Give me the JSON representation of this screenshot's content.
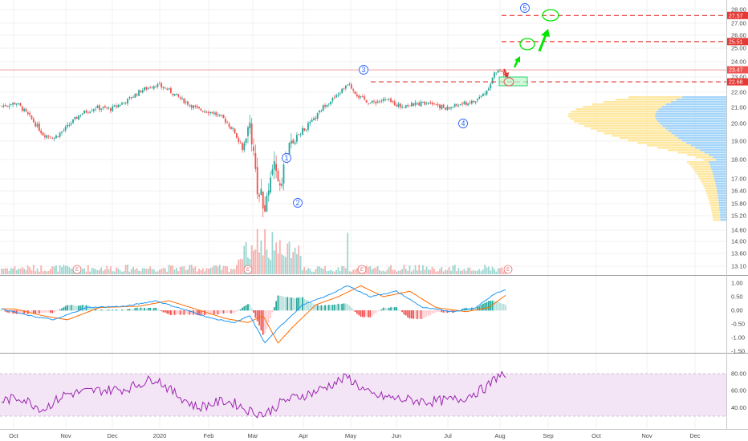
{
  "colors": {
    "up": "#26a69a",
    "down": "#ef5350",
    "macd": "#2196f3",
    "signal": "#ff6d00",
    "rsi": "#9c27b0",
    "rsi_band": "#f3e5f5",
    "level_dash": "#e53935",
    "price_line": "#ef9a9a",
    "vp_up": "#90caf9",
    "vp_down": "#ffe082",
    "annotation_green": "#00e600",
    "wave_label": "#2962ff"
  },
  "price_axis": {
    "ticks": [
      "28.00",
      "27.00",
      "26.00",
      "25.00",
      "24.00",
      "23.00",
      "22.00",
      "21.00",
      "20.00",
      "19.00",
      "18.00",
      "17.00",
      "16.40",
      "15.80",
      "15.20",
      "14.60",
      "14.00",
      "13.60",
      "13.10"
    ]
  },
  "price_tags": [
    {
      "label": "27.57",
      "value": 27.57,
      "color": "#e53935"
    },
    {
      "label": "25.51",
      "value": 25.51,
      "color": "#e53935"
    },
    {
      "label": "23.47",
      "value": 23.47,
      "color": "#ef5350"
    },
    {
      "label": "22.68",
      "value": 22.68,
      "color": "#e53935"
    }
  ],
  "macd_axis": {
    "ticks": [
      "1.00",
      "0.50",
      "0.00",
      "-0.50",
      "-1.00",
      "-1.50"
    ]
  },
  "rsi_axis": {
    "ticks": [
      "80.00",
      "60.00",
      "40.00"
    ]
  },
  "time_axis": {
    "labels": [
      "Oct",
      "Nov",
      "Dec",
      "2020",
      "Feb",
      "Mar",
      "Apr",
      "May",
      "Jun",
      "Jul",
      "Aug",
      "Sep",
      "Oct",
      "Nov",
      "Dec"
    ]
  },
  "wave_labels": [
    "1",
    "2",
    "3",
    "4",
    "5"
  ],
  "earnings_marker": "E",
  "chart_data": {
    "type": "candlestick",
    "symbol_levels": [
      27.57,
      25.51,
      22.68
    ],
    "last_price": 23.47,
    "price_range": [
      12.8,
      28.3
    ],
    "x_months": [
      "Oct",
      "Nov",
      "Dec",
      "2020",
      "Feb",
      "Mar",
      "Apr",
      "May",
      "Jun",
      "Jul",
      "Aug"
    ],
    "close_path": [
      [
        0,
        21.1
      ],
      [
        8,
        21.3
      ],
      [
        15,
        20.4
      ],
      [
        22,
        19.4
      ],
      [
        28,
        19.2
      ],
      [
        34,
        19.7
      ],
      [
        42,
        20.6
      ],
      [
        50,
        21.0
      ],
      [
        58,
        20.9
      ],
      [
        66,
        21.4
      ],
      [
        74,
        22.1
      ],
      [
        82,
        22.5
      ],
      [
        88,
        22.2
      ],
      [
        96,
        21.5
      ],
      [
        104,
        20.9
      ],
      [
        112,
        20.7
      ],
      [
        118,
        20.3
      ],
      [
        124,
        19.5
      ],
      [
        128,
        18.5
      ],
      [
        132,
        20.0
      ],
      [
        136,
        16.6
      ],
      [
        140,
        15.6
      ],
      [
        144,
        17.7
      ],
      [
        148,
        16.8
      ],
      [
        152,
        18.4
      ],
      [
        158,
        19.4
      ],
      [
        166,
        20.2
      ],
      [
        172,
        21.2
      ],
      [
        178,
        21.7
      ],
      [
        184,
        22.6
      ],
      [
        190,
        21.7
      ],
      [
        196,
        21.3
      ],
      [
        204,
        21.5
      ],
      [
        212,
        21.1
      ],
      [
        220,
        21.2
      ],
      [
        228,
        21.4
      ],
      [
        236,
        20.9
      ],
      [
        244,
        21.2
      ],
      [
        252,
        21.4
      ],
      [
        258,
        22.1
      ],
      [
        262,
        23.2
      ],
      [
        265,
        23.5
      ],
      [
        268,
        23.1
      ]
    ],
    "volume_spike_indices": [
      136,
      140,
      144,
      184
    ],
    "macd_path": [
      [
        0,
        0.05
      ],
      [
        15,
        -0.2
      ],
      [
        28,
        -0.35
      ],
      [
        45,
        0.1
      ],
      [
        66,
        0.15
      ],
      [
        82,
        0.35
      ],
      [
        96,
        0.05
      ],
      [
        112,
        -0.3
      ],
      [
        124,
        -0.45
      ],
      [
        132,
        -0.2
      ],
      [
        140,
        -1.2
      ],
      [
        148,
        -0.6
      ],
      [
        160,
        0.2
      ],
      [
        172,
        0.5
      ],
      [
        184,
        0.9
      ],
      [
        196,
        0.5
      ],
      [
        210,
        0.7
      ],
      [
        224,
        0.1
      ],
      [
        240,
        -0.05
      ],
      [
        252,
        0.1
      ],
      [
        262,
        0.6
      ],
      [
        268,
        0.75
      ]
    ],
    "rsi_path": [
      [
        0,
        48
      ],
      [
        10,
        52
      ],
      [
        22,
        38
      ],
      [
        34,
        56
      ],
      [
        50,
        60
      ],
      [
        66,
        62
      ],
      [
        82,
        75
      ],
      [
        90,
        60
      ],
      [
        104,
        40
      ],
      [
        118,
        48
      ],
      [
        124,
        45
      ],
      [
        132,
        36
      ],
      [
        140,
        32
      ],
      [
        150,
        48
      ],
      [
        166,
        58
      ],
      [
        184,
        76
      ],
      [
        196,
        55
      ],
      [
        212,
        50
      ],
      [
        228,
        47
      ],
      [
        244,
        50
      ],
      [
        258,
        64
      ],
      [
        265,
        80
      ],
      [
        268,
        76
      ]
    ]
  }
}
